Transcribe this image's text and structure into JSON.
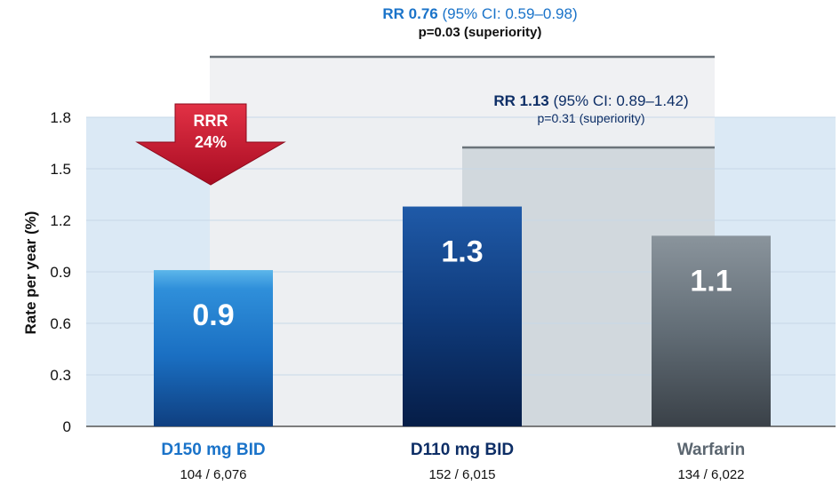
{
  "chart_data": {
    "type": "bar",
    "ylabel": "Rate per year (%)",
    "ylim": [
      0,
      1.8
    ],
    "yticks": [
      "1.8",
      "1.5",
      "1.2",
      "0.9",
      "0.6",
      "0.3",
      "0"
    ],
    "ytick_values": [
      1.8,
      1.5,
      1.2,
      0.9,
      0.6,
      0.3,
      0
    ],
    "categories": [
      "D150 mg BID",
      "D110 mg BID",
      "Warfarin"
    ],
    "subcategories": [
      "104 / 6,076",
      "152 / 6,015",
      "134 / 6,022"
    ],
    "values": [
      0.91,
      1.28,
      1.11
    ],
    "data_labels": [
      "0.9",
      "1.3",
      "1.1"
    ],
    "colors": {
      "d150": "#1a73c9",
      "d110": "#0d2e66",
      "warfarin": "#5b6670",
      "label_blue": "#1a73c9",
      "arrow": "#c8102e"
    },
    "comparisons": [
      {
        "rr_label": "RR 0.76",
        "ci_text": " (95% CI: 0.59–0.98)",
        "p_text": "p=0.03 (superiority)",
        "between": [
          "D150 mg BID",
          "Warfarin"
        ]
      },
      {
        "rr_label": "RR 1.13",
        "ci_text": " (95% CI: 0.89–1.42)",
        "p_text": "p=0.31 (superiority)",
        "between": [
          "D110 mg BID",
          "Warfarin"
        ]
      }
    ],
    "callout": {
      "line1": "RRR",
      "line2": "24%"
    }
  }
}
